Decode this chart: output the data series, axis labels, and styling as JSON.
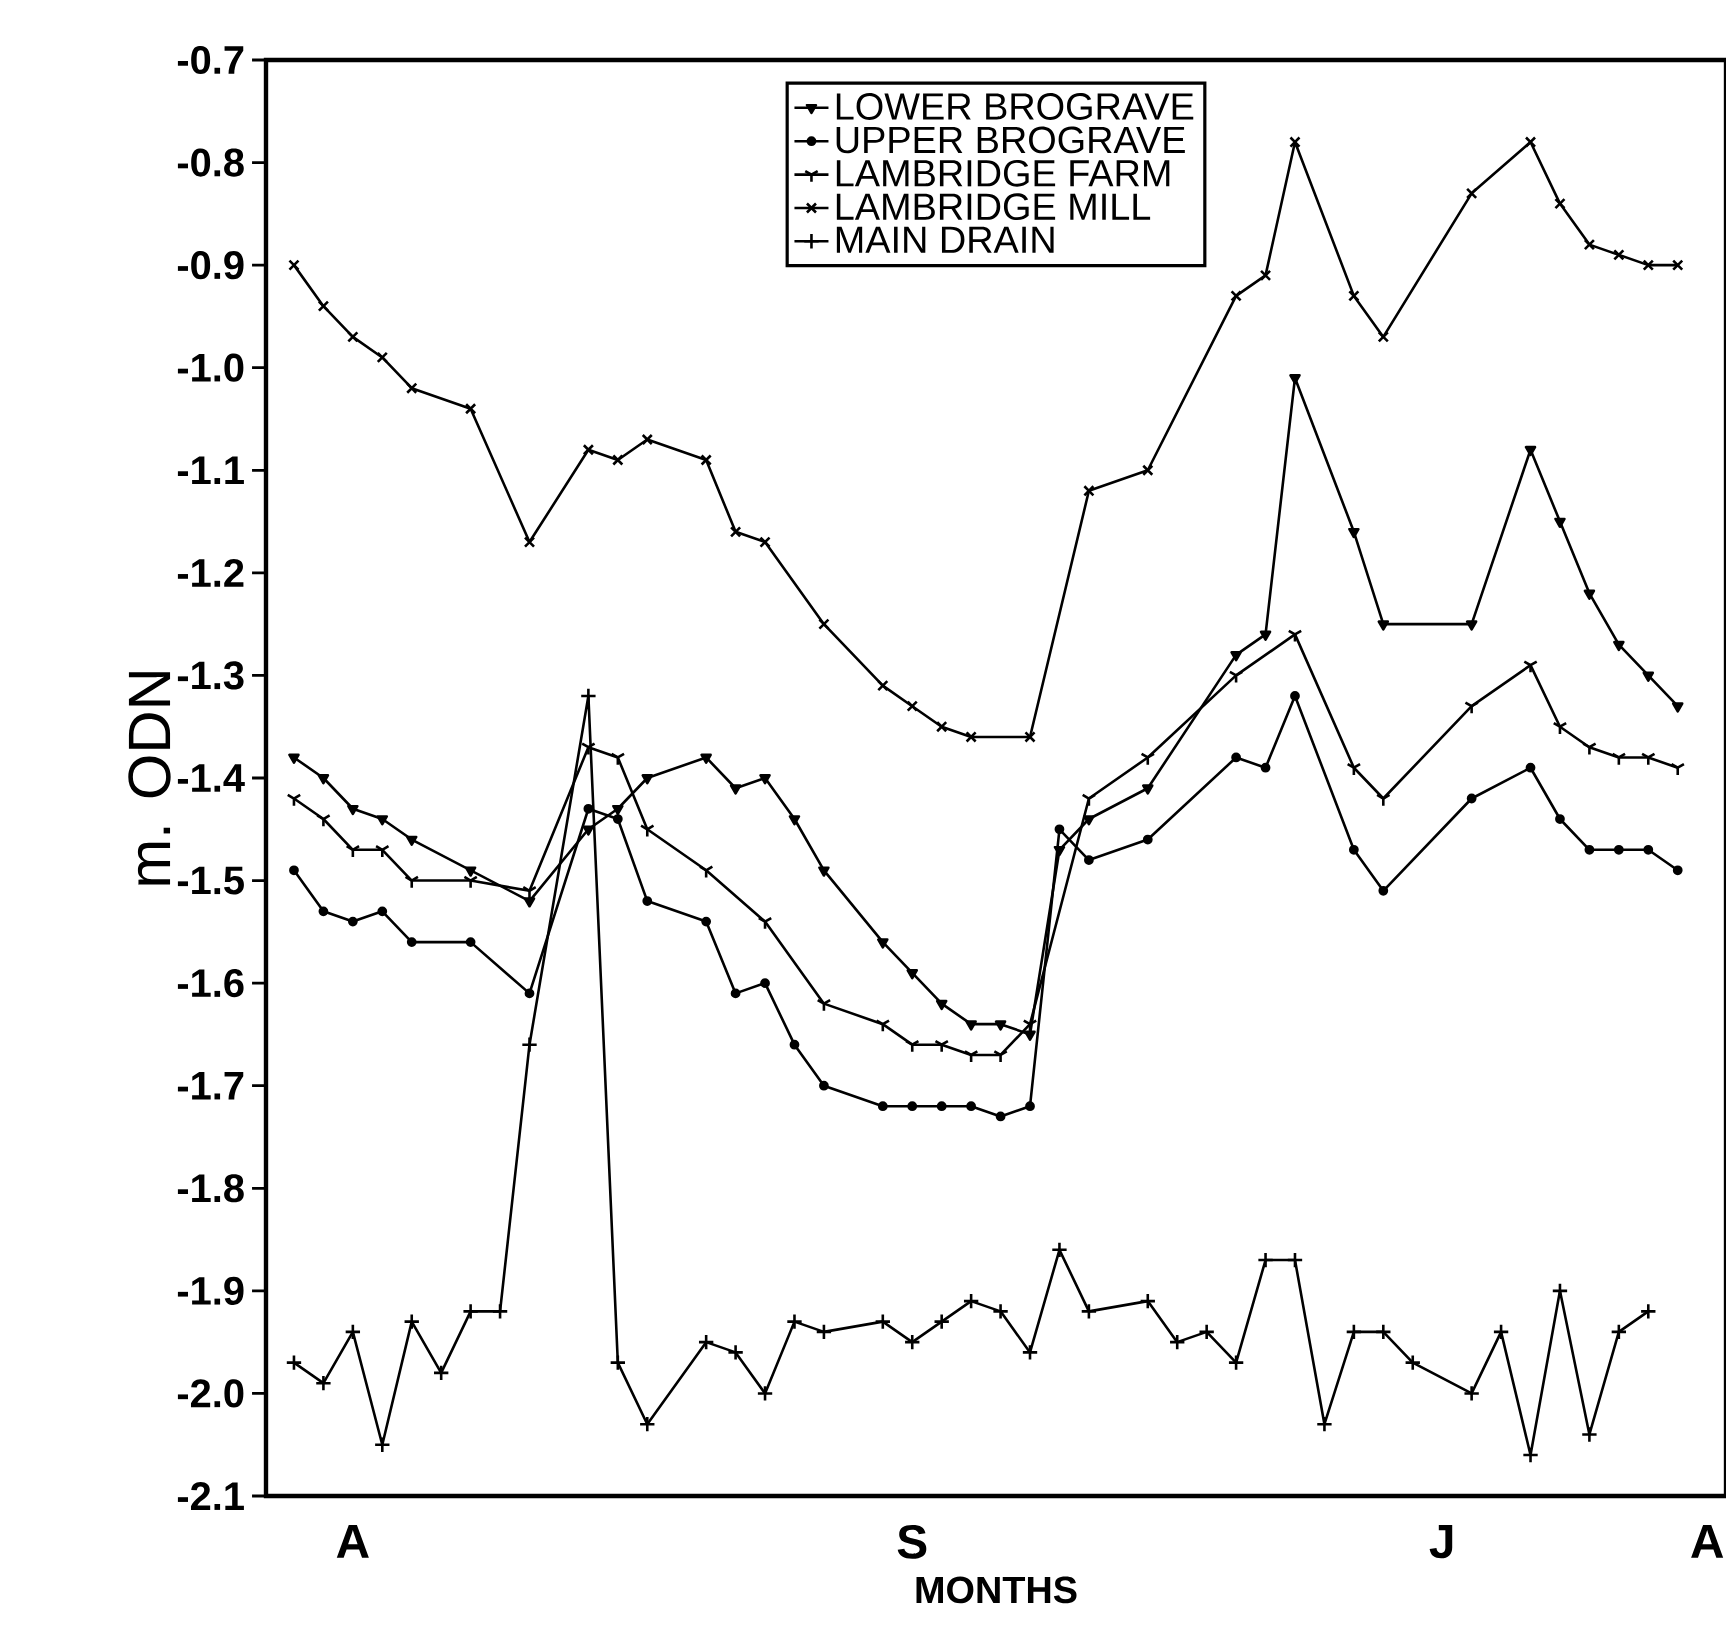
{
  "chart_data": {
    "type": "line",
    "xlabel": "MONTHS",
    "ylabel": "m. ODN",
    "categories": [
      null,
      null,
      "A",
      null,
      null,
      null,
      null,
      null,
      null,
      null,
      null,
      null,
      null,
      null,
      null,
      null,
      null,
      null,
      null,
      null,
      null,
      "S",
      null,
      null,
      null,
      null,
      null,
      null,
      null,
      null,
      null,
      null,
      null,
      null,
      null,
      null,
      null,
      null,
      null,
      "J",
      null,
      null,
      null,
      null,
      null,
      null,
      null,
      null,
      "A"
    ],
    "ylim": [
      -2.1,
      -0.7
    ],
    "yticks": [
      -2.1,
      {
        "value": -2.0,
        "label": "-2.0"
      },
      -1.9,
      -1.8,
      -1.7,
      -1.6,
      -1.5,
      -1.4,
      -1.3,
      -1.2,
      -1.1,
      {
        "value": -1.0,
        "label": "-1.0"
      },
      -0.9,
      -0.8,
      -0.7
    ],
    "legend": "top",
    "grid": false,
    "line_style": "solid",
    "series": [
      {
        "name": "LOWER BROGRAVE",
        "color": "#000000",
        "marker": "triangle",
        "values": [
          -1.38,
          -1.4,
          -1.43,
          -1.44,
          -1.46,
          null,
          -1.49,
          null,
          -1.52,
          null,
          -1.45,
          -1.43,
          -1.4,
          null,
          -1.38,
          -1.41,
          -1.4,
          -1.44,
          -1.49,
          null,
          -1.56,
          -1.59,
          -1.62,
          -1.64,
          -1.64,
          -1.65,
          -1.47,
          -1.44,
          null,
          -1.41,
          null,
          null,
          -1.28,
          -1.26,
          -1.01,
          null,
          -1.16,
          -1.25,
          null,
          null,
          -1.25,
          null,
          -1.08,
          -1.15,
          -1.22,
          -1.27,
          -1.3,
          -1.33,
          null
        ]
      },
      {
        "name": "UPPER BROGRAVE",
        "color": "#000000",
        "marker": "circle",
        "values": [
          -1.49,
          -1.53,
          -1.54,
          -1.53,
          -1.56,
          null,
          -1.56,
          null,
          -1.61,
          null,
          -1.43,
          -1.44,
          -1.52,
          null,
          -1.54,
          -1.61,
          -1.6,
          -1.66,
          -1.7,
          null,
          -1.72,
          -1.72,
          -1.72,
          -1.72,
          -1.73,
          -1.72,
          -1.45,
          -1.48,
          null,
          -1.46,
          null,
          null,
          -1.38,
          -1.39,
          -1.32,
          null,
          -1.47,
          -1.51,
          null,
          null,
          -1.42,
          null,
          -1.39,
          -1.44,
          -1.47,
          -1.47,
          -1.47,
          -1.49,
          null
        ]
      },
      {
        "name": "LAMBRIDGE FARM",
        "color": "#000000",
        "marker": "cross",
        "values": [
          -1.42,
          -1.44,
          -1.47,
          -1.47,
          -1.5,
          null,
          -1.5,
          null,
          -1.51,
          null,
          -1.37,
          -1.38,
          -1.45,
          null,
          -1.49,
          null,
          -1.54,
          null,
          -1.62,
          null,
          -1.64,
          -1.66,
          -1.66,
          -1.67,
          -1.67,
          -1.64,
          null,
          -1.42,
          null,
          -1.38,
          null,
          null,
          -1.3,
          null,
          -1.26,
          null,
          -1.39,
          -1.42,
          null,
          null,
          -1.33,
          null,
          -1.29,
          -1.35,
          -1.37,
          -1.38,
          -1.38,
          -1.39,
          null
        ]
      },
      {
        "name": "LAMBRIDGE MILL",
        "color": "#000000",
        "marker": "x",
        "values": [
          -0.9,
          -0.94,
          -0.97,
          -0.99,
          -1.02,
          null,
          -1.04,
          null,
          -1.17,
          null,
          -1.08,
          -1.09,
          -1.07,
          null,
          -1.09,
          -1.16,
          -1.17,
          null,
          -1.25,
          null,
          -1.31,
          -1.33,
          -1.35,
          -1.36,
          null,
          -1.36,
          null,
          -1.12,
          null,
          -1.1,
          null,
          null,
          -0.93,
          -0.91,
          -0.78,
          null,
          -0.93,
          -0.97,
          null,
          null,
          -0.83,
          null,
          -0.78,
          -0.84,
          -0.88,
          -0.89,
          -0.9,
          -0.9,
          null
        ]
      },
      {
        "name": "MAIN DRAIN",
        "color": "#000000",
        "marker": "plus",
        "values": [
          -1.97,
          -1.99,
          -1.94,
          -2.05,
          -1.93,
          -1.98,
          -1.92,
          -1.92,
          -1.66,
          null,
          -1.32,
          -1.97,
          -2.03,
          null,
          -1.95,
          -1.96,
          -2.0,
          -1.93,
          -1.94,
          null,
          -1.93,
          -1.95,
          -1.93,
          -1.91,
          -1.92,
          -1.96,
          -1.86,
          -1.92,
          null,
          -1.91,
          -1.95,
          -1.94,
          -1.97,
          -1.87,
          -1.87,
          -2.03,
          -1.94,
          -1.94,
          -1.97,
          null,
          -2.0,
          -1.94,
          -2.06,
          -1.9,
          -2.04,
          -1.94,
          -1.92,
          null,
          null
        ]
      }
    ]
  }
}
